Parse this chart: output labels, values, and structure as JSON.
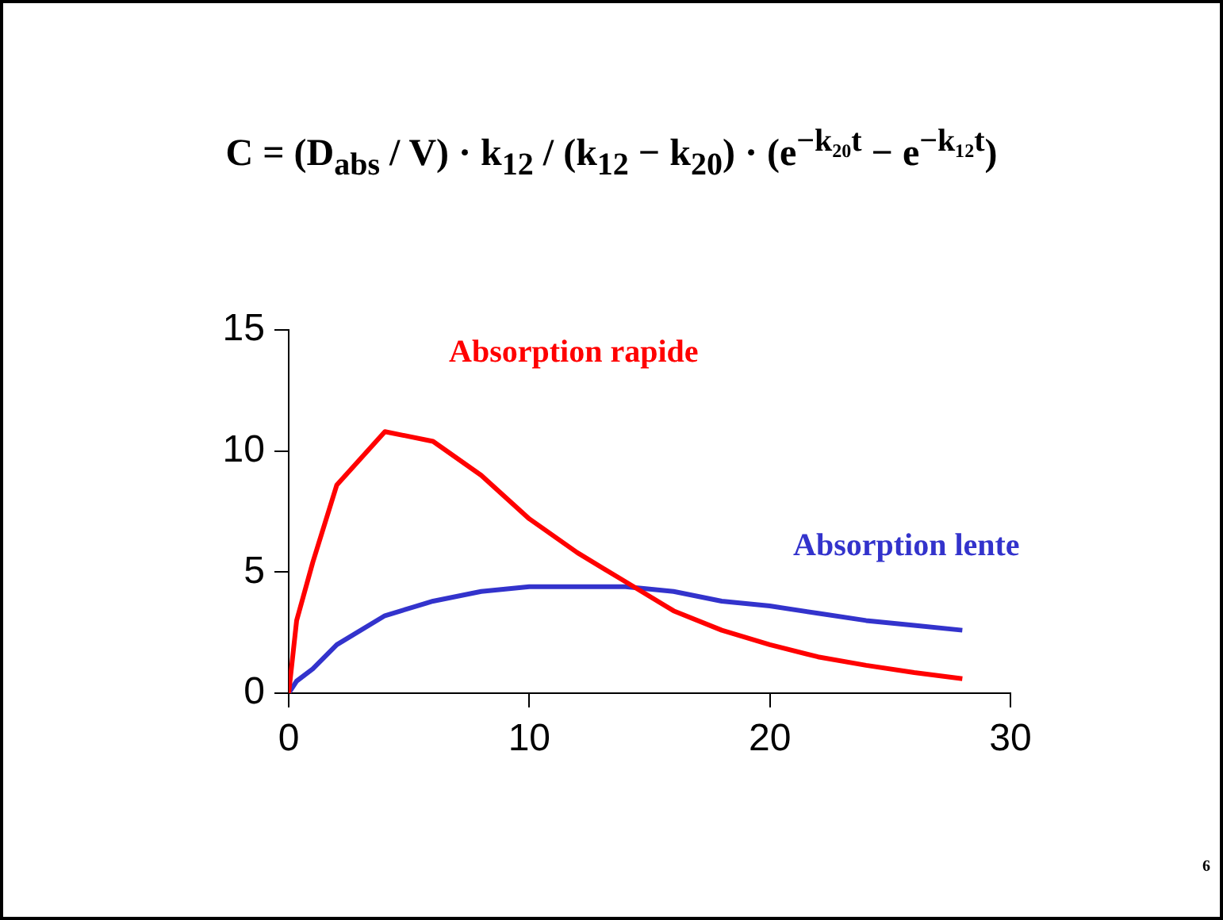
{
  "chart_data": {
    "type": "line",
    "title": "C = (D$_{abs}$ / V) · k$_{12}$ / (k$_{12}$ − k$_{20}$) · (e$^{−k₂₀t}$ − e$^{−k₁₂t}$)",
    "x": [
      0,
      0.33,
      1,
      2,
      4,
      6,
      8,
      10,
      12,
      14,
      16,
      18,
      20,
      22,
      24,
      26,
      28
    ],
    "series": [
      {
        "name": "Absorption rapide",
        "color": "#ff0000",
        "values": [
          0,
          3.0,
          5.4,
          8.6,
          10.8,
          10.4,
          9.0,
          7.2,
          5.8,
          4.6,
          3.4,
          2.6,
          2.0,
          1.5,
          1.15,
          0.85,
          0.6
        ]
      },
      {
        "name": "Absorption lente",
        "color": "#3333cc",
        "values": [
          0,
          0.5,
          1.0,
          2.0,
          3.2,
          3.8,
          4.2,
          4.4,
          4.4,
          4.4,
          4.2,
          3.8,
          3.6,
          3.3,
          3.0,
          2.8,
          2.6
        ]
      }
    ],
    "xlim": [
      0,
      30
    ],
    "xticks": [
      0,
      10,
      20,
      30
    ],
    "ylim": [
      0,
      15
    ],
    "yticks": [
      0,
      5,
      10,
      15
    ],
    "annotations": [
      "6"
    ]
  }
}
